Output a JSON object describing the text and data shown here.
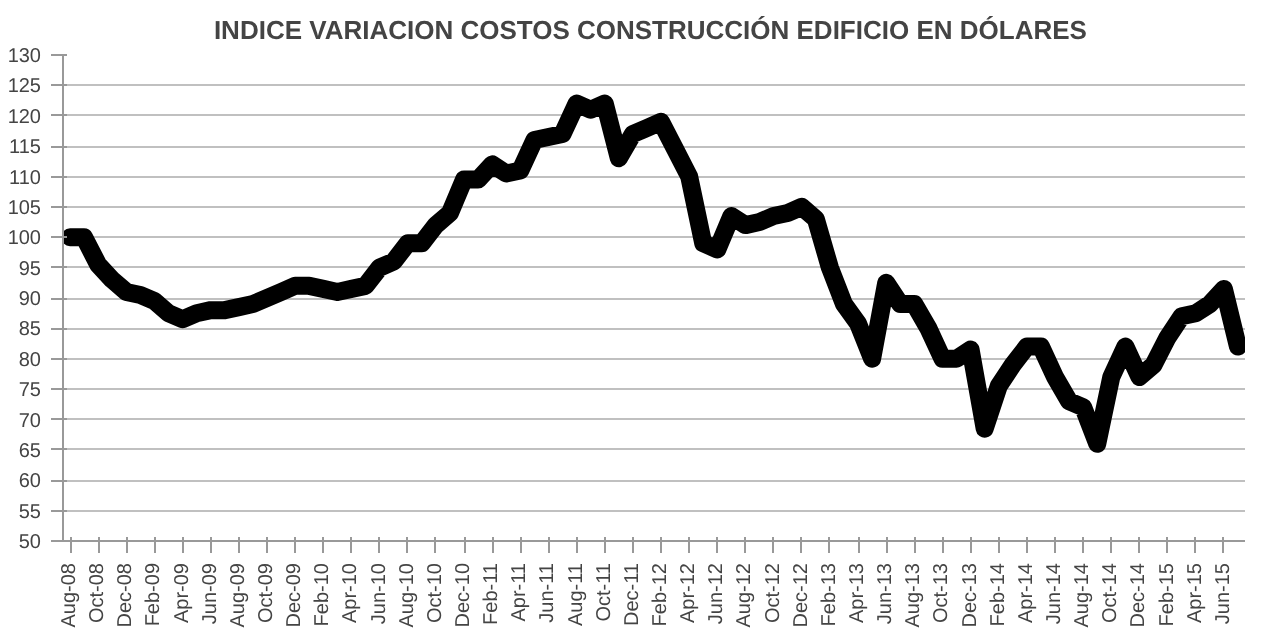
{
  "chart_data": {
    "type": "line",
    "title": "INDICE VARIACION  COSTOS CONSTRUCCIÓN EDIFICIO EN DÓLARES",
    "categories": [
      "Aug-08",
      null,
      "Oct-08",
      null,
      "Dec-08",
      null,
      "Feb-09",
      null,
      "Apr-09",
      null,
      "Jun-09",
      null,
      "Aug-09",
      null,
      "Oct-09",
      null,
      "Dec-09",
      null,
      "Feb-10",
      null,
      "Apr-10",
      null,
      "Jun-10",
      null,
      "Aug-10",
      null,
      "Oct-10",
      null,
      "Dec-10",
      null,
      "Feb-11",
      null,
      "Apr-11",
      null,
      "Jun-11",
      null,
      "Aug-11",
      null,
      "Oct-11",
      null,
      "Dec-11",
      null,
      "Feb-12",
      null,
      "Apr-12",
      null,
      "Jun-12",
      null,
      "Aug-12",
      null,
      "Oct-12",
      null,
      "Dec-12",
      null,
      "Feb-13",
      null,
      "Apr-13",
      null,
      "Jun-13",
      null,
      "Aug-13",
      null,
      "Oct-13",
      null,
      "Dec-13",
      null,
      "Feb-14",
      null,
      "Apr-14",
      null,
      "Jun-14",
      null,
      "Aug-14",
      null,
      "Oct-14",
      null,
      "Dec-14",
      null,
      "Feb-15",
      null,
      "Apr-15",
      null,
      "Jun-15",
      null
    ],
    "series": [
      {
        "color": "#000000",
        "values": [
          100,
          100,
          95.5,
          93,
          91,
          90.5,
          89.5,
          87.5,
          86.5,
          87.5,
          88,
          88,
          88.5,
          89,
          90,
          91,
          92,
          92,
          91.5,
          91,
          91.5,
          92,
          95,
          96,
          99,
          99,
          102,
          104,
          109.5,
          109.5,
          112,
          110.5,
          111,
          116,
          116.5,
          117,
          122,
          121,
          122,
          113,
          117,
          118,
          119,
          114.5,
          110,
          99,
          98,
          103.5,
          102,
          102.5,
          103.5,
          104,
          105,
          103,
          95,
          89,
          85.8,
          80,
          92.5,
          89,
          89,
          85,
          80,
          80,
          81.5,
          68.5,
          75.5,
          79,
          82,
          82,
          77,
          73,
          72,
          66,
          77,
          82,
          77,
          79,
          83.5,
          87,
          87.5,
          89,
          91.5,
          82
        ]
      }
    ],
    "ylim": [
      50,
      130
    ],
    "yticks": [
      50,
      55,
      60,
      65,
      70,
      75,
      80,
      85,
      90,
      95,
      100,
      105,
      110,
      115,
      120,
      125,
      130
    ],
    "grid": "y",
    "marker": "none",
    "line_style": "solid"
  }
}
